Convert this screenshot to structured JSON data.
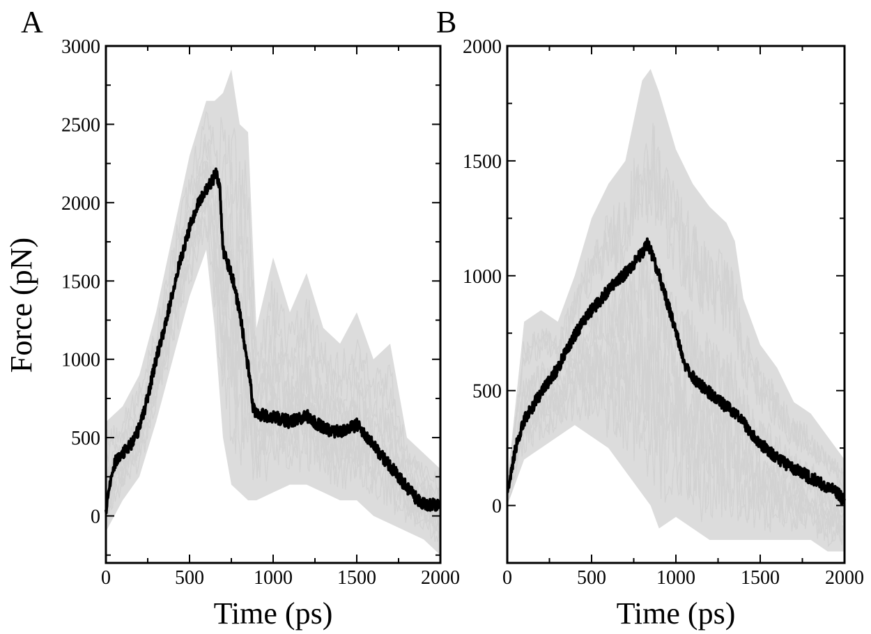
{
  "chart_data": [
    {
      "type": "line",
      "panel_label": "A",
      "xlabel": "Time (ps)",
      "ylabel": "Force (pN)",
      "xlim": [
        0,
        2000
      ],
      "ylim": [
        -300,
        3000
      ],
      "x_ticks": [
        0,
        500,
        1000,
        1500,
        2000
      ],
      "y_ticks": [
        0,
        500,
        1000,
        1500,
        2000,
        2500,
        3000
      ],
      "x_minor_step": 250,
      "y_minor_step": 250,
      "grid": false,
      "legend": "none",
      "series": [
        {
          "role": "individual-run-envelope",
          "color": "#dcdcdc",
          "x": [
            0,
            100,
            200,
            300,
            400,
            500,
            600,
            650,
            700,
            750,
            800,
            850,
            900,
            1000,
            1100,
            1200,
            1300,
            1400,
            1500,
            1600,
            1700,
            1800,
            1900,
            2000
          ],
          "upper": [
            600,
            700,
            900,
            1300,
            1800,
            2300,
            2650,
            2650,
            2700,
            2850,
            2500,
            2450,
            1200,
            1650,
            1300,
            1550,
            1200,
            1100,
            1300,
            1000,
            1100,
            500,
            400,
            300
          ],
          "lower": [
            -100,
            100,
            250,
            600,
            1000,
            1400,
            1700,
            1200,
            500,
            200,
            150,
            100,
            100,
            150,
            200,
            200,
            150,
            100,
            100,
            0,
            -50,
            -100,
            -150,
            -250
          ]
        },
        {
          "role": "average",
          "color": "#000000",
          "x": [
            0,
            30,
            60,
            100,
            150,
            200,
            250,
            300,
            350,
            400,
            450,
            500,
            550,
            600,
            640,
            660,
            680,
            700,
            750,
            800,
            850,
            880,
            900,
            950,
            1000,
            1050,
            1100,
            1150,
            1200,
            1250,
            1300,
            1350,
            1400,
            1450,
            1500,
            1550,
            1600,
            1650,
            1700,
            1750,
            1800,
            1850,
            1900,
            1950,
            2000
          ],
          "y": [
            30,
            250,
            360,
            400,
            460,
            560,
            760,
            1000,
            1200,
            1430,
            1650,
            1840,
            1990,
            2080,
            2150,
            2200,
            2100,
            1700,
            1550,
            1300,
            950,
            700,
            650,
            640,
            630,
            620,
            600,
            620,
            640,
            600,
            560,
            540,
            540,
            560,
            580,
            520,
            450,
            380,
            320,
            250,
            180,
            120,
            80,
            70,
            70
          ]
        }
      ]
    },
    {
      "type": "line",
      "panel_label": "B",
      "xlabel": "Time (ps)",
      "ylabel": "",
      "xlim": [
        0,
        2000
      ],
      "ylim": [
        -250,
        2000
      ],
      "x_ticks": [
        0,
        500,
        1000,
        1500,
        2000
      ],
      "y_ticks": [
        0,
        500,
        1000,
        1500,
        2000
      ],
      "x_minor_step": 250,
      "y_minor_step": 250,
      "grid": false,
      "legend": "none",
      "series": [
        {
          "role": "individual-run-envelope",
          "color": "#dcdcdc",
          "x": [
            0,
            100,
            200,
            300,
            400,
            500,
            600,
            700,
            800,
            850,
            900,
            1000,
            1100,
            1200,
            1300,
            1350,
            1400,
            1500,
            1600,
            1700,
            1800,
            1900,
            2000
          ],
          "upper": [
            100,
            800,
            850,
            800,
            1000,
            1250,
            1400,
            1500,
            1850,
            1900,
            1800,
            1550,
            1400,
            1300,
            1230,
            1150,
            900,
            700,
            600,
            450,
            400,
            300,
            200
          ],
          "lower": [
            0,
            200,
            250,
            300,
            350,
            300,
            250,
            150,
            50,
            0,
            -100,
            -50,
            -100,
            -150,
            -150,
            -150,
            -150,
            -150,
            -150,
            -150,
            -150,
            -200,
            -200
          ]
        },
        {
          "role": "average",
          "color": "#000000",
          "x": [
            0,
            50,
            100,
            150,
            200,
            250,
            300,
            350,
            400,
            450,
            500,
            550,
            600,
            650,
            700,
            750,
            800,
            830,
            850,
            900,
            950,
            1000,
            1050,
            1100,
            1150,
            1200,
            1250,
            1300,
            1350,
            1400,
            1450,
            1500,
            1550,
            1600,
            1650,
            1700,
            1750,
            1800,
            1850,
            1900,
            1950,
            2000
          ],
          "y": [
            50,
            250,
            370,
            430,
            490,
            540,
            600,
            670,
            740,
            800,
            850,
            890,
            940,
            970,
            1010,
            1050,
            1100,
            1140,
            1110,
            1000,
            880,
            760,
            620,
            560,
            520,
            490,
            460,
            430,
            400,
            360,
            310,
            270,
            240,
            210,
            180,
            160,
            140,
            120,
            100,
            80,
            60,
            20
          ]
        }
      ]
    }
  ]
}
